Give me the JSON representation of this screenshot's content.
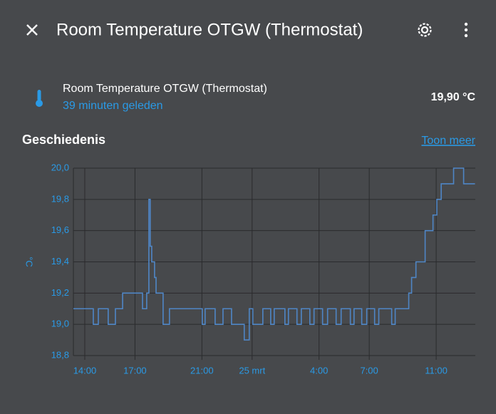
{
  "header": {
    "title": "Room Temperature OTGW (Thermostat)"
  },
  "entity": {
    "name": "Room Temperature OTGW (Thermostat)",
    "last_changed": "39 minuten geleden",
    "state": "19,90 °C"
  },
  "history": {
    "title": "Geschiedenis",
    "more_link": "Toon meer"
  },
  "chart_data": {
    "type": "line",
    "ylabel": "°C",
    "step": true,
    "grid": true,
    "x": [
      13.32,
      14.51,
      14.81,
      15.4,
      15.83,
      16.26,
      17.45,
      17.7,
      17.83,
      17.91,
      18.0,
      18.17,
      18.26,
      18.68,
      19.06,
      21.02,
      21.19,
      21.79,
      22.26,
      22.77,
      23.53,
      23.83,
      24.04,
      24.64,
      25.11,
      25.32,
      25.96,
      26.17,
      26.68,
      26.94,
      27.45,
      27.7,
      28.21,
      28.51,
      29.02,
      29.32,
      29.87,
      30.09,
      30.55,
      30.85,
      31.32,
      31.57,
      32.34,
      32.55,
      33.36,
      33.53,
      33.79,
      34.34,
      34.81,
      35.04,
      35.3,
      36.04,
      36.64,
      37.32
    ],
    "series": [
      {
        "color": "#4f86c6",
        "values": [
          19.1,
          19.0,
          19.1,
          19.0,
          19.1,
          19.2,
          19.1,
          19.2,
          19.8,
          19.5,
          19.4,
          19.3,
          19.2,
          19.0,
          19.1,
          19.0,
          19.1,
          19.0,
          19.1,
          19.0,
          18.9,
          19.1,
          19.0,
          19.1,
          19.0,
          19.1,
          19.0,
          19.1,
          19.0,
          19.1,
          19.0,
          19.1,
          19.0,
          19.1,
          19.0,
          19.1,
          19.0,
          19.1,
          19.0,
          19.1,
          19.0,
          19.1,
          19.0,
          19.1,
          19.2,
          19.3,
          19.4,
          19.6,
          19.7,
          19.8,
          19.9,
          20.0,
          19.9,
          19.9
        ]
      }
    ],
    "xlim": [
      13.32,
      37.34
    ],
    "ylim": [
      18.8,
      20.0
    ],
    "xticks": [
      {
        "value": 14,
        "label": "14:00"
      },
      {
        "value": 17,
        "label": "17:00"
      },
      {
        "value": 21,
        "label": "21:00"
      },
      {
        "value": 24,
        "label": "25 mrt"
      },
      {
        "value": 28,
        "label": "4:00"
      },
      {
        "value": 31,
        "label": "7:00"
      },
      {
        "value": 35,
        "label": "11:00"
      }
    ],
    "yticks": [
      {
        "value": 18.8,
        "label": "18,8"
      },
      {
        "value": 19.0,
        "label": "19,0"
      },
      {
        "value": 19.2,
        "label": "19,2"
      },
      {
        "value": 19.4,
        "label": "19,4"
      },
      {
        "value": 19.6,
        "label": "19,6"
      },
      {
        "value": 19.8,
        "label": "19,8"
      },
      {
        "value": 20.0,
        "label": "20,0"
      }
    ]
  }
}
